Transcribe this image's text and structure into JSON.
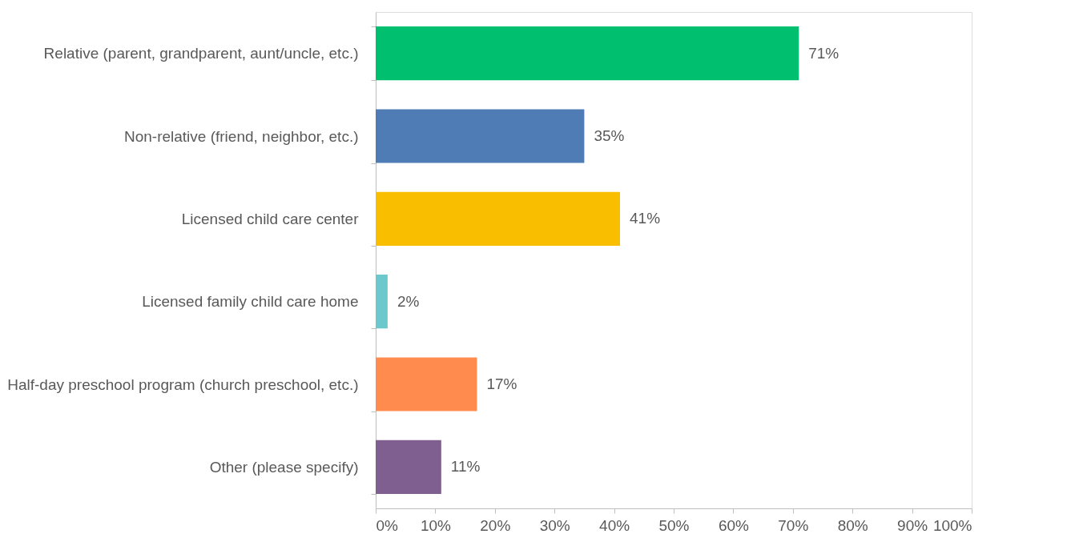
{
  "chart_data": {
    "type": "bar",
    "orientation": "horizontal",
    "categories": [
      "Relative (parent, grandparent, aunt/uncle, etc.)",
      "Non-relative (friend, neighbor, etc.)",
      "Licensed child care center",
      "Licensed family child care home",
      "Half-day preschool program (church preschool, etc.)",
      "Other (please specify)"
    ],
    "values": [
      71,
      35,
      41,
      2,
      17,
      11
    ],
    "value_labels": [
      "71%",
      "35%",
      "41%",
      "2%",
      "17%",
      "11%"
    ],
    "colors": [
      "#00bf6f",
      "#507cb6",
      "#f9be00",
      "#6bc8cd",
      "#ff8b4f",
      "#7f5f90"
    ],
    "xlim": [
      0,
      100
    ],
    "xticks": [
      {
        "value": 0,
        "label": "0%"
      },
      {
        "value": 10,
        "label": "10%"
      },
      {
        "value": 20,
        "label": "20%"
      },
      {
        "value": 30,
        "label": "30%"
      },
      {
        "value": 40,
        "label": "40%"
      },
      {
        "value": 50,
        "label": "50%"
      },
      {
        "value": 60,
        "label": "60%"
      },
      {
        "value": 70,
        "label": "70%"
      },
      {
        "value": 80,
        "label": "80%"
      },
      {
        "value": 90,
        "label": "90%"
      },
      {
        "value": 100,
        "label": "100%"
      }
    ],
    "grid": false
  }
}
